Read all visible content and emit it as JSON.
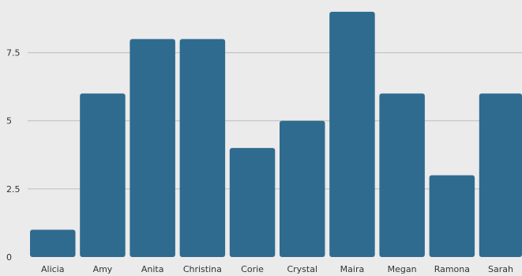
{
  "chart_data": {
    "type": "bar",
    "title": "",
    "xlabel": "",
    "ylabel": "",
    "categories": [
      "Alicia",
      "Amy",
      "Anita",
      "Christina",
      "Corie",
      "Crystal",
      "Maira",
      "Megan",
      "Ramona",
      "Sarah"
    ],
    "values": [
      1,
      6,
      8,
      8,
      4,
      5,
      9,
      6,
      3,
      6
    ],
    "ylim": [
      0,
      9.2
    ],
    "yticks": [
      0,
      2.5,
      5,
      7.5
    ],
    "ytick_labels": [
      "0",
      "2.5",
      "5",
      "7.5"
    ],
    "grid": true,
    "legend": "none",
    "bar_color": "#2f6b8f",
    "grid_color": "#bdbdbd",
    "background": "#ebebeb"
  }
}
